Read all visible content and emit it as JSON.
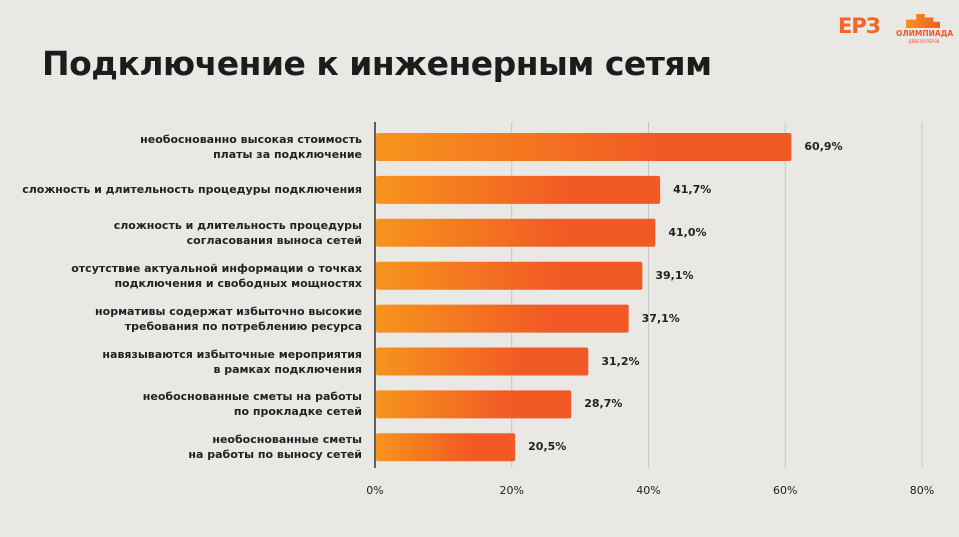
{
  "header": {
    "title": "Подключение к инженерным сетям",
    "logos": [
      {
        "text": "ЕРЗ"
      },
      {
        "text": "ОЛИМПИАДА",
        "subtext": "ДЕВЕЛОПЕРОВ"
      }
    ]
  },
  "chart_data": {
    "type": "bar",
    "orientation": "horizontal",
    "categories": [
      "необоснованно высокая стоимость\nплаты за подключение",
      "сложность и длительность процедуры подключения",
      "сложность и длительность процедуры\nсогласования выноса сетей",
      "отсутствие актуальной информации о точках\nподключения и свободных мощностях",
      "нормативы содержат избыточно высокие\nтребования по потреблению ресурса",
      "навязываются избыточные мероприятия\nв рамках подключения",
      "необоснованные сметы на работы\nпо  прокладке сетей",
      "необоснованные сметы\nна работы по выносу сетей"
    ],
    "values": [
      60.9,
      41.7,
      41.0,
      39.1,
      37.1,
      31.2,
      28.7,
      20.5
    ],
    "data_labels": [
      "60,9%",
      "41,7%",
      "41,0%",
      "39,1%",
      "37,1%",
      "31,2%",
      "28,7%",
      "20,5%"
    ],
    "xlim": [
      0,
      80
    ],
    "ticks": [
      0,
      20,
      40,
      60,
      80
    ],
    "tick_labels": [
      "0%",
      "20%",
      "40%",
      "60%",
      "80%"
    ],
    "grid": true,
    "colors": {
      "bar_start": "#F7941D",
      "bar_end": "#F15A24",
      "grid": "#C8C6C3",
      "axis": "#333333"
    }
  }
}
